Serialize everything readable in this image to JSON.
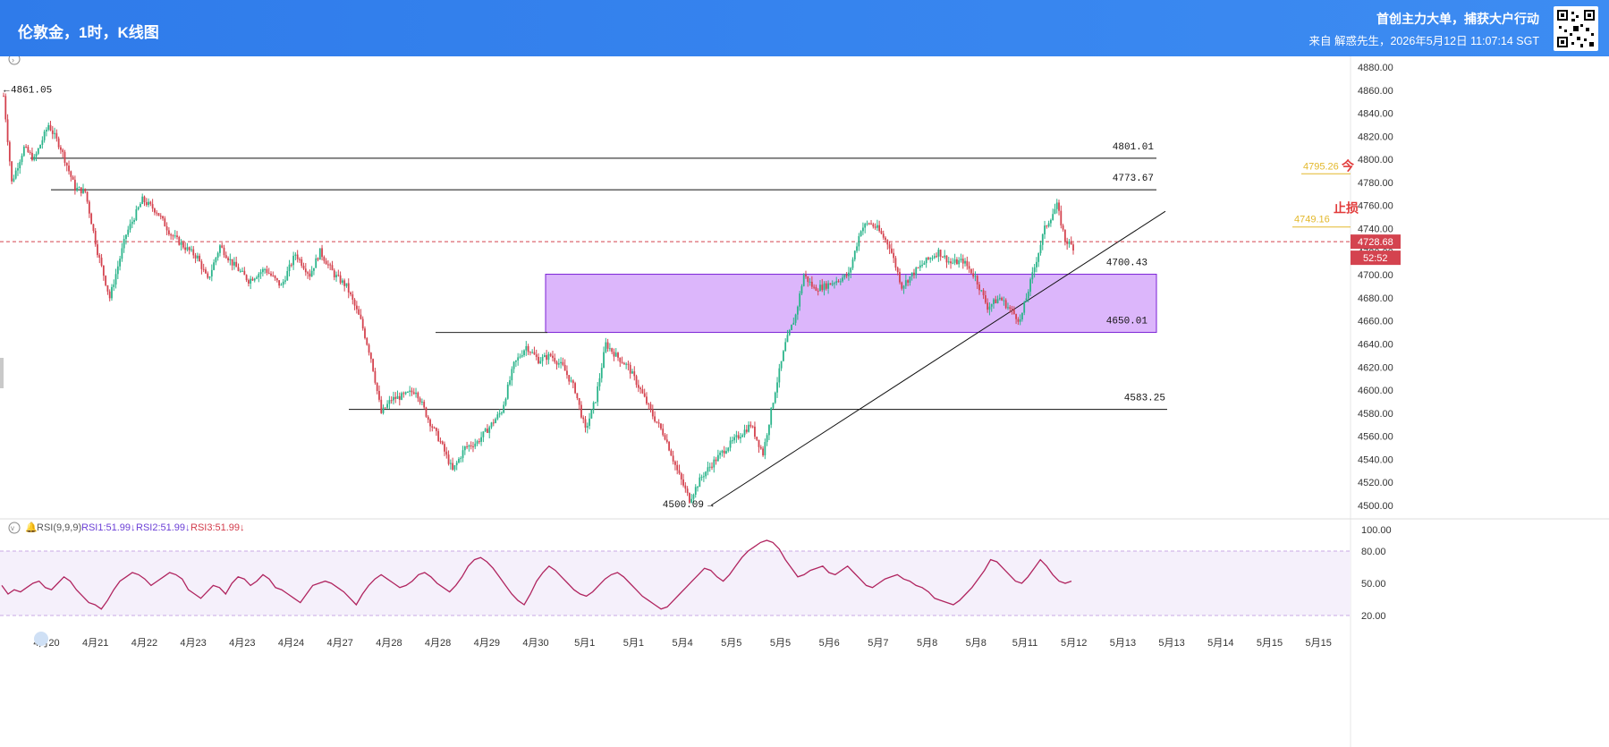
{
  "header": {
    "title": "伦敦金，1时，K线图",
    "promo": "首创主力大单，捕获大户行动",
    "source": "来自 解惑先生，2026年5月12日 11:07:14 SGT"
  },
  "colors": {
    "header": "#2f7bea",
    "up": "#2bb48b",
    "down": "#d4434f",
    "price_line": "#d4434f",
    "zone_fill": "#dcb6fb",
    "zone_border": "#7a1fd6",
    "rsi_line": "#b0245f",
    "rsi_band": "#f5f0fb",
    "stop_label": "#e23b3b",
    "target_label": "#e3b82b"
  },
  "chart_data": [
    {
      "type": "candlestick",
      "title": "伦敦金，1时，K线图",
      "ylim": [
        4500,
        4880
      ],
      "yticks": [
        "4880.00",
        "4860.00",
        "4840.00",
        "4820.00",
        "4800.00",
        "4780.00",
        "4760.00",
        "4740.00",
        "4720.00",
        "4700.00",
        "4680.00",
        "4660.00",
        "4640.00",
        "4620.00",
        "4600.00",
        "4580.00",
        "4560.00",
        "4540.00",
        "4520.00",
        "4500.00"
      ],
      "x_labels": [
        "4月20",
        "4月21",
        "4月22",
        "4月23",
        "4月23",
        "4月24",
        "4月27",
        "4月28",
        "4月28",
        "4月29",
        "4月30",
        "5月1",
        "5月1",
        "5月4",
        "5月5",
        "5月5",
        "5月6",
        "5月7",
        "5月8",
        "5月8",
        "5月11",
        "5月12",
        "5月13",
        "5月13",
        "5月14",
        "5月15",
        "5月15"
      ],
      "price_path": [
        [
          0,
          4855
        ],
        [
          4,
          4780
        ],
        [
          10,
          4810
        ],
        [
          15,
          4800
        ],
        [
          22,
          4830
        ],
        [
          28,
          4810
        ],
        [
          35,
          4775
        ],
        [
          40,
          4772
        ],
        [
          46,
          4720
        ],
        [
          52,
          4680
        ],
        [
          60,
          4735
        ],
        [
          68,
          4765
        ],
        [
          75,
          4755
        ],
        [
          82,
          4735
        ],
        [
          88,
          4725
        ],
        [
          95,
          4715
        ],
        [
          100,
          4695
        ],
        [
          106,
          4725
        ],
        [
          112,
          4710
        ],
        [
          120,
          4695
        ],
        [
          128,
          4705
        ],
        [
          136,
          4690
        ],
        [
          143,
          4718
        ],
        [
          150,
          4700
        ],
        [
          155,
          4720
        ],
        [
          162,
          4700
        ],
        [
          168,
          4690
        ],
        [
          175,
          4660
        ],
        [
          180,
          4628
        ],
        [
          185,
          4580
        ],
        [
          190,
          4592
        ],
        [
          196,
          4595
        ],
        [
          202,
          4600
        ],
        [
          208,
          4575
        ],
        [
          214,
          4555
        ],
        [
          220,
          4530
        ],
        [
          226,
          4550
        ],
        [
          232,
          4555
        ],
        [
          238,
          4568
        ],
        [
          244,
          4582
        ],
        [
          250,
          4622
        ],
        [
          256,
          4638
        ],
        [
          262,
          4626
        ],
        [
          268,
          4630
        ],
        [
          274,
          4620
        ],
        [
          280,
          4600
        ],
        [
          285,
          4565
        ],
        [
          290,
          4592
        ],
        [
          295,
          4640
        ],
        [
          300,
          4630
        ],
        [
          306,
          4620
        ],
        [
          312,
          4600
        ],
        [
          318,
          4578
        ],
        [
          324,
          4560
        ],
        [
          330,
          4530
        ],
        [
          336,
          4505
        ],
        [
          342,
          4525
        ],
        [
          348,
          4538
        ],
        [
          354,
          4550
        ],
        [
          360,
          4560
        ],
        [
          366,
          4570
        ],
        [
          372,
          4545
        ],
        [
          378,
          4600
        ],
        [
          383,
          4640
        ],
        [
          388,
          4665
        ],
        [
          392,
          4700
        ],
        [
          397,
          4688
        ],
        [
          402,
          4690
        ],
        [
          408,
          4695
        ],
        [
          414,
          4700
        ],
        [
          420,
          4740
        ],
        [
          424,
          4745
        ],
        [
          428,
          4740
        ],
        [
          434,
          4725
        ],
        [
          440,
          4690
        ],
        [
          446,
          4702
        ],
        [
          452,
          4712
        ],
        [
          458,
          4720
        ],
        [
          464,
          4710
        ],
        [
          470,
          4712
        ],
        [
          476,
          4698
        ],
        [
          482,
          4672
        ],
        [
          488,
          4680
        ],
        [
          494,
          4668
        ],
        [
          498,
          4660
        ],
        [
          504,
          4700
        ],
        [
          510,
          4740
        ],
        [
          516,
          4760
        ],
        [
          520,
          4730
        ],
        [
          524,
          4724
        ]
      ],
      "annotations": [
        {
          "label": "4861.05",
          "price": 4861.05
        },
        {
          "label": "4801.01",
          "price": 4801.01
        },
        {
          "label": "4773.67",
          "price": 4773.67
        },
        {
          "label": "4700.43",
          "price": 4700.43
        },
        {
          "label": "4650.01",
          "price": 4650.01
        },
        {
          "label": "4583.25",
          "price": 4583.25
        },
        {
          "label": "4500.09",
          "price": 4500.09
        }
      ],
      "levels": [
        4801.01,
        4773.67,
        4583.25
      ],
      "support_line": {
        "from_price": 4650.01
      },
      "zone": {
        "upper": 4700.43,
        "lower": 4650.01
      },
      "trendline": {
        "start_price": 4500.09,
        "end_price": 4755
      },
      "current_price": {
        "value": "4728.68",
        "countdown": "52:52"
      },
      "right_labels": [
        {
          "text": "4795.26",
          "color": "#e3b82b",
          "suffix": "今"
        },
        {
          "text": "4749.16",
          "color": "#e3b82b",
          "suffix": "止损"
        }
      ]
    },
    {
      "type": "line",
      "title": "RSI(9,9,9)",
      "legend": [
        {
          "name": "RSI1:51.99↓",
          "color": "#6b3fd6"
        },
        {
          "name": "RSI2:51.99↓",
          "color": "#6b3fd6"
        },
        {
          "name": "RSI3:51.99↓",
          "color": "#d23a4a"
        }
      ],
      "ylim": [
        0,
        100
      ],
      "yticks": [
        "100.00",
        "80.00",
        "50.00",
        "20.00"
      ],
      "band": [
        20,
        80
      ],
      "series": [
        {
          "values": [
            48,
            40,
            44,
            42,
            46,
            50,
            52,
            46,
            44,
            50,
            56,
            52,
            44,
            38,
            32,
            30,
            26,
            34,
            44,
            52,
            56,
            60,
            58,
            54,
            48,
            52,
            56,
            60,
            58,
            54,
            44,
            40,
            36,
            42,
            48,
            46,
            40,
            50,
            56,
            54,
            48,
            52,
            58,
            54,
            46,
            44,
            40,
            36,
            32,
            40,
            48,
            50,
            52,
            50,
            46,
            42,
            36,
            30,
            40,
            48,
            54,
            58,
            54,
            50,
            46,
            48,
            52,
            58,
            60,
            56,
            50,
            46,
            42,
            48,
            56,
            66,
            72,
            74,
            70,
            64,
            56,
            48,
            40,
            34,
            30,
            40,
            52,
            60,
            66,
            62,
            56,
            50,
            44,
            40,
            38,
            42,
            48,
            54,
            58,
            60,
            56,
            50,
            44,
            38,
            34,
            30,
            26,
            28,
            34,
            40,
            46,
            52,
            58,
            64,
            62,
            56,
            52,
            58,
            66,
            74,
            80,
            84,
            88,
            90,
            88,
            82,
            72,
            64,
            56,
            58,
            62,
            64,
            66,
            60,
            58,
            62,
            66,
            60,
            54,
            48,
            46,
            50,
            54,
            56,
            58,
            54,
            52,
            48,
            46,
            42,
            36,
            34,
            32,
            30,
            34,
            40,
            46,
            54,
            62,
            72,
            70,
            64,
            58,
            52,
            50,
            56,
            64,
            72,
            66,
            58,
            52,
            50,
            51.99
          ]
        }
      ]
    }
  ]
}
